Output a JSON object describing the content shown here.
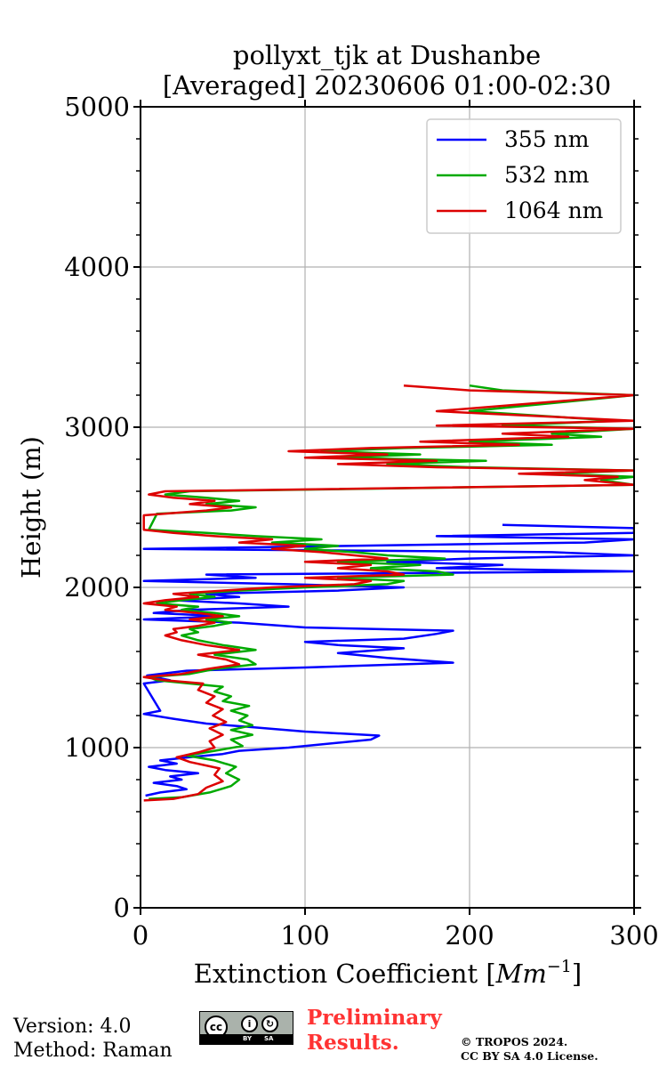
{
  "chart_data": {
    "type": "line",
    "title": [
      "pollyxt_tjk at Dushanbe",
      "[Averaged] 20230606 01:00-02:30"
    ],
    "xlabel": "Extinction Coefficient [Mm⁻¹]",
    "xlabel_base": "Extinction Coefficient [",
    "xlabel_unit": "Mm",
    "xlabel_exp": "−1",
    "xlabel_end": "]",
    "ylabel": "Height (m)",
    "xlim": [
      0,
      300
    ],
    "ylim": [
      0,
      5000
    ],
    "xticks": [
      0,
      100,
      200,
      300
    ],
    "xtick_labels": [
      "0",
      "100",
      "200",
      "300"
    ],
    "yticks": [
      0,
      1000,
      2000,
      3000,
      4000,
      5000
    ],
    "ytick_labels": [
      "0",
      "1000",
      "2000",
      "3000",
      "4000",
      "5000"
    ],
    "grid": true,
    "legend_position": "top-right",
    "series": [
      {
        "name": "355 nm",
        "color": "#0000ff",
        "points": [
          [
            3,
            700
          ],
          [
            12,
            720
          ],
          [
            28,
            740
          ],
          [
            22,
            760
          ],
          [
            8,
            780
          ],
          [
            25,
            800
          ],
          [
            18,
            820
          ],
          [
            35,
            840
          ],
          [
            15,
            860
          ],
          [
            5,
            880
          ],
          [
            22,
            900
          ],
          [
            12,
            920
          ],
          [
            30,
            940
          ],
          [
            50,
            960
          ],
          [
            60,
            980
          ],
          [
            90,
            1000
          ],
          [
            110,
            1020
          ],
          [
            140,
            1050
          ],
          [
            145,
            1075
          ],
          [
            100,
            1100
          ],
          [
            65,
            1130
          ],
          [
            40,
            1150
          ],
          [
            20,
            1180
          ],
          [
            2,
            1210
          ],
          [
            12,
            1230
          ],
          [
            2,
            1400
          ],
          [
            18,
            1420
          ],
          [
            4,
            1450
          ],
          [
            28,
            1480
          ],
          [
            100,
            1500
          ],
          [
            190,
            1530
          ],
          [
            150,
            1560
          ],
          [
            120,
            1590
          ],
          [
            160,
            1620
          ],
          [
            120,
            1640
          ],
          [
            100,
            1660
          ],
          [
            160,
            1680
          ],
          [
            180,
            1710
          ],
          [
            190,
            1730
          ],
          [
            100,
            1750
          ],
          [
            60,
            1780
          ],
          [
            2,
            1800
          ],
          [
            50,
            1820
          ],
          [
            8,
            1840
          ],
          [
            30,
            1860
          ],
          [
            90,
            1880
          ],
          [
            60,
            1900
          ],
          [
            20,
            1920
          ],
          [
            60,
            1940
          ],
          [
            40,
            1960
          ],
          [
            120,
            1980
          ],
          [
            160,
            2000
          ],
          [
            90,
            2020
          ],
          [
            2,
            2040
          ],
          [
            70,
            2060
          ],
          [
            40,
            2080
          ],
          [
            300,
            2100
          ],
          [
            180,
            2120
          ],
          [
            220,
            2140
          ],
          [
            150,
            2160
          ],
          [
            200,
            2180
          ],
          [
            300,
            2200
          ],
          [
            250,
            2220
          ],
          [
            2,
            2240
          ],
          [
            130,
            2260
          ],
          [
            270,
            2280
          ],
          [
            300,
            2300
          ],
          [
            180,
            2320
          ],
          [
            300,
            2340
          ],
          [
            300,
            2370
          ],
          [
            220,
            2390
          ]
        ]
      },
      {
        "name": "532 nm",
        "color": "#00aa00",
        "points": [
          [
            5,
            680
          ],
          [
            25,
            690
          ],
          [
            42,
            720
          ],
          [
            55,
            760
          ],
          [
            60,
            800
          ],
          [
            52,
            840
          ],
          [
            58,
            880
          ],
          [
            45,
            920
          ],
          [
            28,
            950
          ],
          [
            45,
            980
          ],
          [
            62,
            1010
          ],
          [
            55,
            1050
          ],
          [
            68,
            1080
          ],
          [
            55,
            1110
          ],
          [
            68,
            1140
          ],
          [
            60,
            1170
          ],
          [
            65,
            1200
          ],
          [
            55,
            1230
          ],
          [
            66,
            1260
          ],
          [
            50,
            1290
          ],
          [
            55,
            1320
          ],
          [
            45,
            1350
          ],
          [
            50,
            1380
          ],
          [
            30,
            1400
          ],
          [
            10,
            1420
          ],
          [
            5,
            1440
          ],
          [
            30,
            1460
          ],
          [
            45,
            1490
          ],
          [
            70,
            1520
          ],
          [
            65,
            1550
          ],
          [
            45,
            1580
          ],
          [
            70,
            1610
          ],
          [
            50,
            1640
          ],
          [
            35,
            1670
          ],
          [
            25,
            1700
          ],
          [
            35,
            1720
          ],
          [
            30,
            1740
          ],
          [
            45,
            1760
          ],
          [
            55,
            1780
          ],
          [
            40,
            1800
          ],
          [
            60,
            1820
          ],
          [
            45,
            1840
          ],
          [
            25,
            1860
          ],
          [
            35,
            1880
          ],
          [
            10,
            1900
          ],
          [
            25,
            1920
          ],
          [
            45,
            1940
          ],
          [
            30,
            1960
          ],
          [
            60,
            1980
          ],
          [
            100,
            2000
          ],
          [
            150,
            2020
          ],
          [
            160,
            2040
          ],
          [
            120,
            2060
          ],
          [
            190,
            2080
          ],
          [
            180,
            2100
          ],
          [
            140,
            2120
          ],
          [
            170,
            2140
          ],
          [
            120,
            2160
          ],
          [
            185,
            2180
          ],
          [
            150,
            2200
          ],
          [
            130,
            2220
          ],
          [
            100,
            2240
          ],
          [
            120,
            2260
          ],
          [
            80,
            2280
          ],
          [
            110,
            2300
          ],
          [
            70,
            2320
          ],
          [
            40,
            2340
          ],
          [
            5,
            2360
          ],
          [
            10,
            2460
          ],
          [
            55,
            2480
          ],
          [
            70,
            2500
          ],
          [
            40,
            2520
          ],
          [
            60,
            2540
          ],
          [
            40,
            2560
          ],
          [
            15,
            2580
          ],
          [
            30,
            2600
          ],
          [
            300,
            2640
          ],
          [
            280,
            2670
          ],
          [
            300,
            2690
          ],
          [
            250,
            2710
          ],
          [
            300,
            2730
          ],
          [
            200,
            2750
          ],
          [
            150,
            2770
          ],
          [
            210,
            2790
          ],
          [
            120,
            2810
          ],
          [
            170,
            2830
          ],
          [
            110,
            2850
          ],
          [
            160,
            2870
          ],
          [
            250,
            2890
          ],
          [
            200,
            2910
          ],
          [
            280,
            2940
          ],
          [
            250,
            2960
          ],
          [
            300,
            2990
          ],
          [
            220,
            3010
          ],
          [
            290,
            3040
          ],
          [
            200,
            3100
          ],
          [
            300,
            3200
          ],
          [
            220,
            3230
          ],
          [
            200,
            3260
          ]
        ]
      },
      {
        "name": "1064 nm",
        "color": "#dd0000",
        "points": [
          [
            2,
            670
          ],
          [
            20,
            680
          ],
          [
            35,
            710
          ],
          [
            40,
            750
          ],
          [
            50,
            790
          ],
          [
            45,
            830
          ],
          [
            48,
            870
          ],
          [
            30,
            910
          ],
          [
            22,
            940
          ],
          [
            35,
            970
          ],
          [
            45,
            1000
          ],
          [
            42,
            1040
          ],
          [
            50,
            1080
          ],
          [
            42,
            1120
          ],
          [
            52,
            1160
          ],
          [
            44,
            1200
          ],
          [
            50,
            1240
          ],
          [
            40,
            1280
          ],
          [
            45,
            1320
          ],
          [
            35,
            1360
          ],
          [
            38,
            1400
          ],
          [
            15,
            1420
          ],
          [
            2,
            1440
          ],
          [
            25,
            1460
          ],
          [
            40,
            1490
          ],
          [
            60,
            1520
          ],
          [
            52,
            1550
          ],
          [
            35,
            1580
          ],
          [
            60,
            1610
          ],
          [
            40,
            1640
          ],
          [
            25,
            1670
          ],
          [
            15,
            1700
          ],
          [
            22,
            1720
          ],
          [
            20,
            1740
          ],
          [
            35,
            1760
          ],
          [
            45,
            1780
          ],
          [
            30,
            1800
          ],
          [
            50,
            1820
          ],
          [
            35,
            1840
          ],
          [
            15,
            1860
          ],
          [
            22,
            1880
          ],
          [
            2,
            1900
          ],
          [
            15,
            1920
          ],
          [
            35,
            1940
          ],
          [
            20,
            1960
          ],
          [
            50,
            1980
          ],
          [
            80,
            2000
          ],
          [
            130,
            2020
          ],
          [
            140,
            2040
          ],
          [
            100,
            2060
          ],
          [
            160,
            2080
          ],
          [
            150,
            2100
          ],
          [
            120,
            2120
          ],
          [
            140,
            2140
          ],
          [
            100,
            2160
          ],
          [
            150,
            2180
          ],
          [
            130,
            2200
          ],
          [
            110,
            2220
          ],
          [
            80,
            2240
          ],
          [
            100,
            2260
          ],
          [
            60,
            2280
          ],
          [
            80,
            2300
          ],
          [
            45,
            2320
          ],
          [
            20,
            2340
          ],
          [
            2,
            2360
          ],
          [
            2,
            2450
          ],
          [
            40,
            2480
          ],
          [
            55,
            2500
          ],
          [
            30,
            2520
          ],
          [
            45,
            2540
          ],
          [
            20,
            2560
          ],
          [
            5,
            2580
          ],
          [
            15,
            2600
          ],
          [
            300,
            2640
          ],
          [
            270,
            2670
          ],
          [
            290,
            2690
          ],
          [
            230,
            2710
          ],
          [
            300,
            2730
          ],
          [
            180,
            2750
          ],
          [
            120,
            2770
          ],
          [
            180,
            2790
          ],
          [
            100,
            2810
          ],
          [
            150,
            2830
          ],
          [
            90,
            2850
          ],
          [
            140,
            2870
          ],
          [
            230,
            2890
          ],
          [
            170,
            2910
          ],
          [
            260,
            2940
          ],
          [
            220,
            2960
          ],
          [
            300,
            2990
          ],
          [
            180,
            3010
          ],
          [
            300,
            3040
          ],
          [
            180,
            3100
          ],
          [
            300,
            3200
          ],
          [
            200,
            3230
          ],
          [
            160,
            3260
          ]
        ]
      }
    ]
  },
  "footer": {
    "version": "Version: 4.0",
    "method": "Method: Raman",
    "preliminary_line1": "Preliminary",
    "preliminary_line2": "Results.",
    "copyright_line1": "© TROPOS 2024.",
    "copyright_line2": "CC BY SA 4.0 License.",
    "license_badge": {
      "cc": "cc",
      "by": "BY",
      "sa": "SA"
    }
  }
}
